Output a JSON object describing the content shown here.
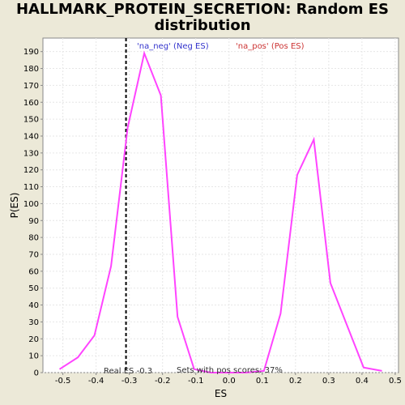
{
  "chart_data": {
    "type": "line",
    "title": "HALLMARK_PROTEIN_SECRETION: Random ES distribution",
    "xlabel": "ES",
    "ylabel": "P(ES)",
    "xlim": [
      -0.56,
      0.51
    ],
    "ylim": [
      0,
      198
    ],
    "x_ticks": [
      -0.5,
      -0.4,
      -0.3,
      -0.2,
      -0.1,
      0.0,
      0.1,
      0.2,
      0.3,
      0.4,
      0.5
    ],
    "x_tick_labels": [
      "-0.5",
      "-0.4",
      "-0.3",
      "-0.2",
      "-0.1",
      "0.0",
      "0.1",
      "0.2",
      "0.3",
      "0.4",
      "0.5"
    ],
    "y_ticks": [
      0,
      10,
      20,
      30,
      40,
      50,
      60,
      70,
      80,
      90,
      100,
      110,
      120,
      130,
      140,
      150,
      160,
      170,
      180,
      190
    ],
    "series": [
      {
        "color": "#ff44ff",
        "x": [
          -0.51,
          -0.455,
          -0.405,
          -0.355,
          -0.305,
          -0.255,
          -0.205,
          -0.155,
          -0.105,
          -0.055,
          0.0,
          0.05,
          0.105,
          0.155,
          0.205,
          0.255,
          0.305,
          0.355,
          0.405,
          0.46
        ],
        "y": [
          2,
          9,
          22,
          63,
          145,
          189,
          164,
          33,
          2,
          0,
          0,
          0,
          1,
          35,
          117,
          138,
          53,
          28,
          3,
          1
        ]
      }
    ],
    "real_es": -0.31,
    "annotations": {
      "neg": "'na_neg' (Neg ES)",
      "pos": "'na_pos' (Pos ES)",
      "real_es": "Real ES -0.3",
      "sets_pos": "Sets with pos scores: 37%"
    },
    "colors": {
      "neg": "#3333cc",
      "pos": "#cc3333",
      "line": "#ff44ff",
      "plot_bg": "#ffffff",
      "page_bg": "#ece9d8",
      "grid": "#e6e6e6"
    },
    "grid": true
  }
}
